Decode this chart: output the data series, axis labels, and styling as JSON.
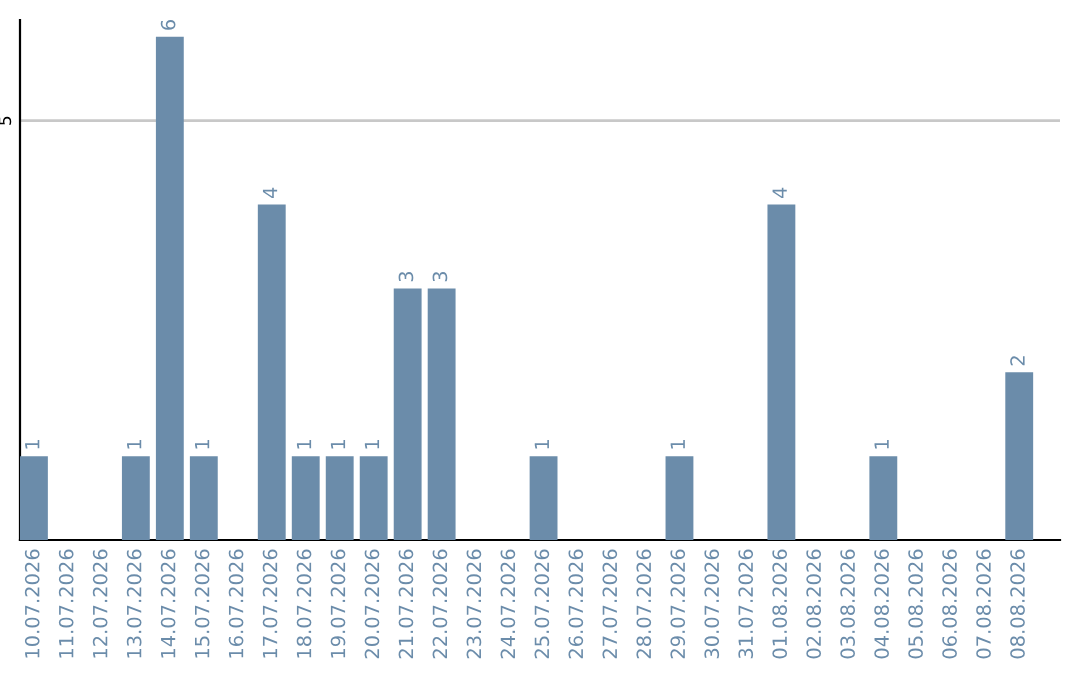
{
  "chart_data": {
    "type": "bar",
    "categories": [
      "10.07.2026",
      "11.07.2026",
      "12.07.2026",
      "13.07.2026",
      "14.07.2026",
      "15.07.2026",
      "16.07.2026",
      "17.07.2026",
      "18.07.2026",
      "19.07.2026",
      "20.07.2026",
      "21.07.2026",
      "22.07.2026",
      "23.07.2026",
      "24.07.2026",
      "25.07.2026",
      "26.07.2026",
      "27.07.2026",
      "28.07.2026",
      "29.07.2026",
      "30.07.2026",
      "31.07.2026",
      "01.08.2026",
      "02.08.2026",
      "03.08.2026",
      "04.08.2026",
      "05.08.2026",
      "06.08.2026",
      "07.08.2026",
      "08.08.2026"
    ],
    "values": [
      1,
      0,
      0,
      1,
      6,
      1,
      0,
      4,
      1,
      1,
      1,
      3,
      3,
      0,
      0,
      1,
      0,
      0,
      0,
      1,
      0,
      0,
      4,
      0,
      0,
      1,
      0,
      0,
      0,
      2
    ],
    "value_labels": [
      "1",
      null,
      null,
      "1",
      "6",
      "1",
      null,
      "4",
      "1",
      "1",
      "1",
      "3",
      "3",
      null,
      null,
      "1",
      null,
      null,
      null,
      "1",
      null,
      null,
      "4",
      null,
      null,
      "1",
      null,
      null,
      null,
      "2"
    ],
    "color": "#6b8caa",
    "ylim": [
      0,
      6.2
    ],
    "yticks": [
      5
    ],
    "grid": "y",
    "legend": false
  }
}
